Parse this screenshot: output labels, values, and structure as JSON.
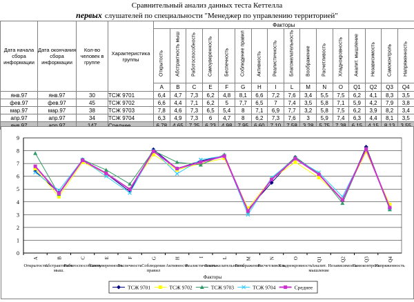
{
  "title": "Сравнительный анализ данных теста Кеттелла",
  "subtitle_bold": "первых",
  "subtitle_rest": "слушателей по специальности \"Менеджер по управлению территорией\"",
  "table": {
    "col_start": "Дата начала сбора информации",
    "col_end": "Дата окончания сбора информации",
    "col_count": "Кол-во человек в группе",
    "col_group": "Характеристика группы",
    "factors_header": "Факторы",
    "factor_names": [
      "Открытость",
      "Абстрактность мыш",
      "Работоспособность",
      "Самоуверенность",
      "Беспечность",
      "Соблюдение правил",
      "Активность",
      "Реалистичность",
      "Благожелательность",
      "Воображение",
      "Расчетливость",
      "Хладнокровность",
      "Аналит. мышление",
      "Независимость",
      "Самоконтроль",
      "Напряженность"
    ],
    "factor_codes": [
      "A",
      "B",
      "C",
      "E",
      "F",
      "G",
      "H",
      "I",
      "L",
      "M",
      "N",
      "O",
      "Q1",
      "Q2",
      "Q3",
      "Q4"
    ],
    "rows": [
      {
        "start": "янв.97",
        "end": "янв.97",
        "count": "30",
        "group": "ТСЖ 9701",
        "values": [
          "6,4",
          "4,7",
          "7,3",
          "6,2",
          "4,8",
          "8,1",
          "6,6",
          "7,2",
          "7,6",
          "3,4",
          "5,5",
          "7,5",
          "6,2",
          "4,1",
          "8,3",
          "3,5"
        ]
      },
      {
        "start": "фев.97",
        "end": "фев.97",
        "count": "45",
        "group": "ТСЖ 9702",
        "values": [
          "6,6",
          "4,4",
          "7,1",
          "6,2",
          "5",
          "7,7",
          "6,5",
          "7",
          "7,4",
          "3,5",
          "5,8",
          "7,1",
          "5,9",
          "4,2",
          "7,9",
          "3,8"
        ]
      },
      {
        "start": "мар.97",
        "end": "мар.97",
        "count": "38",
        "group": "ТСЖ 9703",
        "values": [
          "7,8",
          "4,6",
          "7,3",
          "6,5",
          "5,4",
          "8",
          "7,1",
          "6,9",
          "7,7",
          "3,2",
          "5,8",
          "7,5",
          "6,2",
          "3,9",
          "8,2",
          "3,4"
        ]
      },
      {
        "start": "апр.97",
        "end": "апр.97",
        "count": "34",
        "group": "ТСЖ 9704",
        "values": [
          "6,3",
          "4,9",
          "7,3",
          "6",
          "4,7",
          "8",
          "6,2",
          "7,3",
          "7,6",
          "3",
          "5,9",
          "7,4",
          "6,3",
          "4,4",
          "8,1",
          "3,5"
        ]
      },
      {
        "start": "янв.97",
        "end": "апр.97",
        "count": "147",
        "group": "Среднее",
        "values": [
          "6,78",
          "4,65",
          "7,25",
          "6,23",
          "4,98",
          "7,95",
          "6,60",
          "7,10",
          "7,58",
          "3,28",
          "5,75",
          "7,38",
          "6,15",
          "4,15",
          "8,13",
          "3,55"
        ]
      }
    ]
  },
  "chart_data": {
    "type": "line",
    "categories": [
      "A",
      "B",
      "C",
      "E",
      "F",
      "G",
      "H",
      "I",
      "L",
      "M",
      "N",
      "O",
      "Q1",
      "Q2",
      "Q3",
      "Q4"
    ],
    "category_sublabels": [
      "Открытость",
      "Абстрактность мыш.",
      "Работоспособность",
      "Самоуверенность",
      "Беспечность",
      "Соблюдение правил",
      "Активность",
      "Реалистичность",
      "Благожелательность",
      "Воображение",
      "Расчетливость",
      "Хладнокровность",
      "Аналит. мышление",
      "Независимость",
      "Самоконтроль",
      "Напряженность"
    ],
    "xlabel": "Факторы",
    "ylim": [
      0,
      9
    ],
    "yticks": [
      0,
      1,
      2,
      3,
      4,
      5,
      6,
      7,
      8,
      9
    ],
    "grid": true,
    "legend_position": "bottom",
    "series": [
      {
        "name": "ТСЖ 9701",
        "color": "#000080",
        "marker": "diamond",
        "values": [
          6.4,
          4.7,
          7.3,
          6.2,
          4.8,
          8.1,
          6.6,
          7.2,
          7.6,
          3.4,
          5.5,
          7.5,
          6.2,
          4.1,
          8.3,
          3.5
        ]
      },
      {
        "name": "ТСЖ 9702",
        "color": "#ffff00",
        "marker": "square",
        "values": [
          6.6,
          4.4,
          7.1,
          6.2,
          5.0,
          7.7,
          6.5,
          7.0,
          7.4,
          3.5,
          5.8,
          7.1,
          5.9,
          4.2,
          7.9,
          3.8
        ]
      },
      {
        "name": "ТСЖ 9703",
        "color": "#339966",
        "marker": "triangle",
        "values": [
          7.8,
          4.6,
          7.3,
          6.5,
          5.4,
          8.0,
          7.1,
          6.9,
          7.7,
          3.2,
          5.8,
          7.5,
          6.2,
          3.9,
          8.2,
          3.4
        ]
      },
      {
        "name": "ТСЖ 9704",
        "color": "#33ccff",
        "marker": "x",
        "values": [
          6.3,
          4.9,
          7.3,
          6.0,
          4.7,
          8.0,
          6.2,
          7.3,
          7.6,
          3.0,
          5.9,
          7.4,
          6.3,
          4.4,
          8.1,
          3.5
        ]
      },
      {
        "name": "Среднее",
        "color": "#cc33cc",
        "marker": "square",
        "values": [
          6.78,
          4.65,
          7.25,
          6.23,
          4.98,
          7.95,
          6.6,
          7.1,
          7.58,
          3.28,
          5.75,
          7.38,
          6.15,
          4.15,
          8.13,
          3.55
        ]
      }
    ]
  }
}
